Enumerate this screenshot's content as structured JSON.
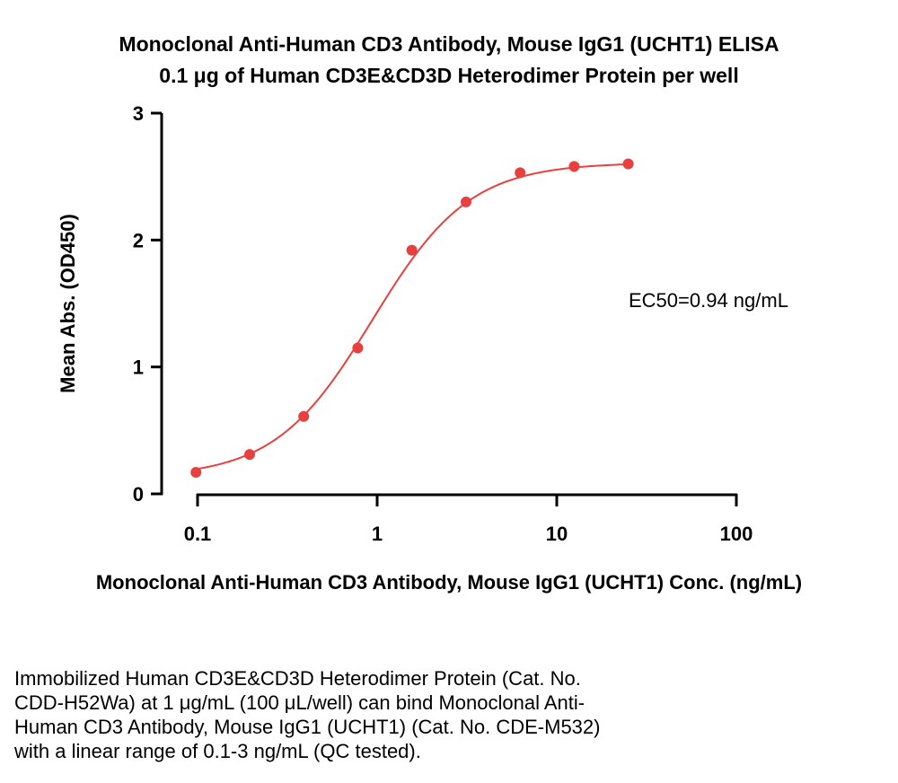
{
  "chart_data": {
    "type": "scatter",
    "title": "Monoclonal Anti-Human CD3 Antibody, Mouse IgG1 (UCHT1) ELISA",
    "subtitle": "0.1 μg of Human CD3E&CD3D Heterodimer Protein per well",
    "xlabel": "Monoclonal Anti-Human CD3 Antibody, Mouse IgG1 (UCHT1) Conc. (ng/mL)",
    "ylabel": "Mean Abs. (OD450)",
    "x_scale": "log",
    "xlim": [
      0.1,
      100
    ],
    "ylim": [
      0,
      3
    ],
    "x_ticks": [
      "0.1",
      "1",
      "10",
      "100"
    ],
    "y_ticks": [
      "0",
      "1",
      "2",
      "3"
    ],
    "x": [
      0.098,
      0.195,
      0.39,
      0.78,
      1.56,
      3.125,
      6.25,
      12.5,
      25
    ],
    "y": [
      0.17,
      0.31,
      0.61,
      1.15,
      1.92,
      2.3,
      2.53,
      2.58,
      2.6
    ],
    "fit": {
      "type": "4PL",
      "bottom": 0.13,
      "top": 2.61,
      "ec50": 0.94,
      "hill": 1.6
    },
    "annotation": "EC50=0.94 ng/mL",
    "grid": false,
    "color": "#e8403f"
  },
  "caption": [
    "Immobilized Human CD3E&CD3D Heterodimer Protein (Cat. No.",
    "CDD-H52Wa) at 1 μg/mL (100 μL/well) can bind Monoclonal Anti-",
    "Human CD3 Antibody, Mouse IgG1 (UCHT1) (Cat. No. CDE-M532)",
    "with a linear range of 0.1-3 ng/mL (QC tested)."
  ]
}
